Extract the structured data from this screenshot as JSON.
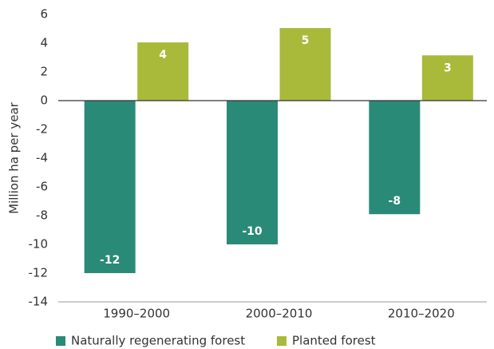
{
  "chart_data": {
    "type": "bar",
    "y_label": "Million ha per year",
    "categories": [
      "1990–2000",
      "2000–2010",
      "2010–2020"
    ],
    "series": [
      {
        "name": "Naturally regenerating forest",
        "color": "#2a8a78",
        "values": [
          -12,
          -10,
          -7.9
        ],
        "value_labels": [
          "-12",
          "-10",
          "-8"
        ]
      },
      {
        "name": "Planted forest",
        "color": "#a9b93a",
        "values": [
          4.05,
          5.05,
          3.15
        ],
        "value_labels": [
          "4",
          "5",
          "3"
        ]
      }
    ],
    "ylim": [
      -14,
      6
    ],
    "yticks": [
      6,
      4,
      2,
      0,
      -2,
      -4,
      -6,
      -8,
      -10,
      -12,
      -14
    ],
    "grid": false
  }
}
